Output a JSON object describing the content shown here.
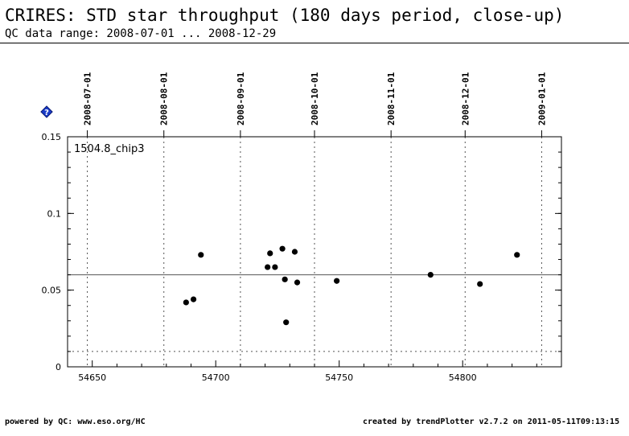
{
  "header": {
    "title": "CRIRES: STD star throughput (180 days period, close-up)",
    "subtitle": "QC data range: 2008-07-01 ... 2008-12-29"
  },
  "footer": {
    "left": "powered by QC: www.eso.org/HC",
    "right": "created by trendPlotter v2.7.2 on 2011-05-11T09:13:15"
  },
  "colors": {
    "help_icon": "#1a3cc8",
    "points": "#000000",
    "grid": "#555555"
  },
  "icon": {
    "help": "question-diamond-icon",
    "help_glyph": "?"
  },
  "chart_data": {
    "type": "scatter",
    "panel_label": "1504.8_chip3",
    "xlim": [
      54640,
      54840
    ],
    "ylim": [
      0,
      0.15
    ],
    "x_ticks": [
      54650,
      54700,
      54750,
      54800
    ],
    "y_ticks": [
      0,
      0.05,
      0.1,
      0.15
    ],
    "y_tick_labels": [
      "0",
      "0.05",
      "0.1",
      "0.15"
    ],
    "top_date_ticks": [
      {
        "mjd": 54648,
        "label": "2008-07-01"
      },
      {
        "mjd": 54679,
        "label": "2008-08-01"
      },
      {
        "mjd": 54710,
        "label": "2008-09-01"
      },
      {
        "mjd": 54740,
        "label": "2008-10-01"
      },
      {
        "mjd": 54771,
        "label": "2008-11-01"
      },
      {
        "mjd": 54801,
        "label": "2008-12-01"
      },
      {
        "mjd": 54832,
        "label": "2009-01-01"
      }
    ],
    "reference_line": 0.06,
    "lower_limit_line": 0.01,
    "points": [
      {
        "x": 54688,
        "y": 0.042
      },
      {
        "x": 54691,
        "y": 0.044
      },
      {
        "x": 54694,
        "y": 0.073
      },
      {
        "x": 54721,
        "y": 0.065
      },
      {
        "x": 54722,
        "y": 0.074
      },
      {
        "x": 54724,
        "y": 0.065
      },
      {
        "x": 54727,
        "y": 0.077
      },
      {
        "x": 54728,
        "y": 0.057
      },
      {
        "x": 54728.5,
        "y": 0.029
      },
      {
        "x": 54732,
        "y": 0.075
      },
      {
        "x": 54733,
        "y": 0.055
      },
      {
        "x": 54749,
        "y": 0.056
      },
      {
        "x": 54787,
        "y": 0.06
      },
      {
        "x": 54807,
        "y": 0.054
      },
      {
        "x": 54822,
        "y": 0.073
      }
    ]
  }
}
